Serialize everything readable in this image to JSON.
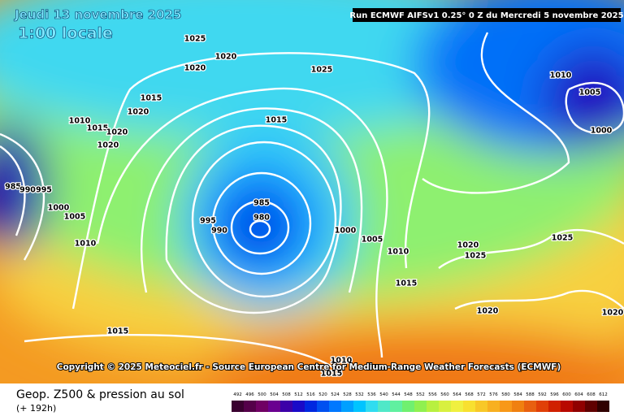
{
  "header": {
    "date": "Jeudi 13 novembre 2025",
    "time": "1:00 locale",
    "run": "Run ECMWF AIFSv1 0.25° 0 Z du Mercredi 5 novembre 2025"
  },
  "copyright": "Copyright © 2025 Meteociel.fr - Source European Centre for Medium-Range Weather Forecasts (ECMWF)",
  "footer": {
    "title": "Geop. Z500 & pression au sol",
    "subtitle": "(+ 192h)"
  },
  "isobar_labels": [
    "1025",
    "1020",
    "1020",
    "1025",
    "1015",
    "1020",
    "1010",
    "1015",
    "1020",
    "1020",
    "1015",
    "1010",
    "1005",
    "1000",
    "985",
    "990",
    "995",
    "1000",
    "1005",
    "1010",
    "985",
    "980",
    "995",
    "990",
    "1000",
    "1005",
    "1010",
    "1015",
    "1020",
    "1025",
    "1025",
    "1020",
    "1015",
    "1020",
    "1010",
    "1015"
  ],
  "colorbar": {
    "labels": [
      492,
      496,
      500,
      504,
      508,
      512,
      516,
      520,
      524,
      528,
      532,
      536,
      540,
      544,
      548,
      552,
      556,
      560,
      564,
      568,
      572,
      576,
      580,
      584,
      588,
      592,
      596,
      600,
      604,
      608,
      612
    ],
    "colors": [
      "#3a0030",
      "#55004a",
      "#700064",
      "#6a0090",
      "#3c00a8",
      "#1a0ac8",
      "#0028e0",
      "#0050f0",
      "#0078ff",
      "#00a0ff",
      "#00c4ff",
      "#30dcf0",
      "#50e8c8",
      "#60f0a0",
      "#70f070",
      "#90f050",
      "#b8f040",
      "#d8f040",
      "#f0f040",
      "#f8e030",
      "#f8c828",
      "#f8b020",
      "#f89818",
      "#f08010",
      "#e86010",
      "#e04008",
      "#d02000",
      "#b80800",
      "#900000",
      "#600000",
      "#300000"
    ]
  }
}
